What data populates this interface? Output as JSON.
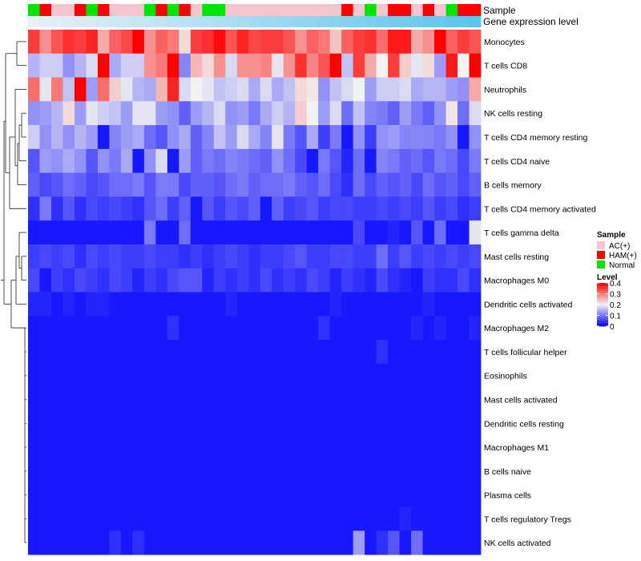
{
  "chart_data": {
    "type": "heatmap",
    "title": "",
    "annotations": [
      {
        "name": "Sample",
        "kind": "categorical"
      },
      {
        "name": "Gene expression level",
        "kind": "continuous"
      }
    ],
    "sample_groups": [
      "C",
      "H",
      "A",
      "A",
      "H",
      "C",
      "H",
      "A",
      "A",
      "A",
      "C",
      "H",
      "C",
      "H",
      "A",
      "C",
      "C",
      "A",
      "A",
      "A",
      "A",
      "A",
      "A",
      "A",
      "A",
      "A",
      "A",
      "H",
      "A",
      "C",
      "A",
      "H",
      "H",
      "A",
      "H",
      "A",
      "C",
      "H",
      "H"
    ],
    "sample_legend": {
      "title": "Sample",
      "items": [
        {
          "code": "A",
          "label": "AC(+)",
          "color": "#f5c6cf"
        },
        {
          "code": "H",
          "label": "HAM(+)",
          "color": "#ff0000"
        },
        {
          "code": "C",
          "label": "Normal",
          "color": "#00e600"
        }
      ]
    },
    "gene_expression_levels": [
      0.02,
      0.04,
      0.06,
      0.08,
      0.1,
      0.12,
      0.14,
      0.16,
      0.18,
      0.2,
      0.22,
      0.24,
      0.26,
      0.28,
      0.3,
      0.32,
      0.34,
      0.36,
      0.38,
      0.4,
      0.42,
      0.44,
      0.46,
      0.48,
      0.5,
      0.52,
      0.54,
      0.56,
      0.58,
      0.6,
      0.62,
      0.64,
      0.66,
      0.68,
      0.7,
      0.72,
      0.74,
      0.76,
      0.78
    ],
    "level_legend": {
      "title": "Level",
      "ticks": [
        "0.4",
        "0.3",
        "0.2",
        "0.1",
        "0"
      ],
      "tick_values": [
        0.4,
        0.3,
        0.2,
        0.1,
        0
      ],
      "range": [
        0,
        0.4
      ],
      "colors": {
        "low": "#0000ff",
        "mid": "#f2f2f2",
        "high": "#ff0000"
      }
    },
    "rows": [
      "Monocytes",
      "T cells CD8",
      "Neutrophils",
      "NK cells resting",
      "T cells CD4 memory resting",
      "T cells CD4 naive",
      "B cells memory",
      "T cells CD4 memory activated",
      "T cells gamma delta",
      "Mast cells resting",
      "Macrophages M0",
      "Dendritic cells activated",
      "Macrophages M2",
      "T cells follicular helper",
      "Eosinophils",
      "Mast cells activated",
      "Dendritic cells resting",
      "Macrophages M1",
      "B cells naive",
      "Plasma cells",
      "T cells regulatory  Tregs",
      "NK cells activated"
    ],
    "values": [
      [
        0.35,
        0.28,
        0.33,
        0.36,
        0.35,
        0.37,
        0.26,
        0.32,
        0.34,
        0.4,
        0.28,
        0.32,
        0.3,
        0.22,
        0.35,
        0.36,
        0.39,
        0.33,
        0.37,
        0.34,
        0.35,
        0.35,
        0.33,
        0.28,
        0.32,
        0.3,
        0.24,
        0.32,
        0.35,
        0.36,
        0.31,
        0.38,
        0.38,
        0.26,
        0.28,
        0.41,
        0.32,
        0.35,
        0.33
      ],
      [
        0.15,
        0.17,
        0.17,
        0.12,
        0.15,
        0.18,
        0.41,
        0.14,
        0.17,
        0.17,
        0.28,
        0.3,
        0.4,
        0.11,
        0.25,
        0.22,
        0.28,
        0.18,
        0.28,
        0.28,
        0.29,
        0.19,
        0.28,
        0.36,
        0.29,
        0.33,
        0.4,
        0.16,
        0.35,
        0.26,
        0.2,
        0.35,
        0.23,
        0.19,
        0.22,
        0.13,
        0.38,
        0.2,
        0.42
      ],
      [
        0.31,
        0.19,
        0.3,
        0.16,
        0.4,
        0.13,
        0.31,
        0.23,
        0.19,
        0.15,
        0.14,
        0.25,
        0.37,
        0.18,
        0.2,
        0.19,
        0.16,
        0.17,
        0.18,
        0.14,
        0.18,
        0.14,
        0.16,
        0.22,
        0.21,
        0.12,
        0.16,
        0.18,
        0.2,
        0.13,
        0.17,
        0.17,
        0.18,
        0.14,
        0.15,
        0.15,
        0.13,
        0.12,
        0.26
      ],
      [
        0.12,
        0.13,
        0.15,
        0.22,
        0.13,
        0.19,
        0.17,
        0.16,
        0.13,
        0.19,
        0.19,
        0.13,
        0.12,
        0.08,
        0.13,
        0.15,
        0.18,
        0.12,
        0.13,
        0.1,
        0.14,
        0.17,
        0.15,
        0.23,
        0.2,
        0.13,
        0.18,
        0.09,
        0.16,
        0.11,
        0.1,
        0.08,
        0.13,
        0.1,
        0.08,
        0.12,
        0.21,
        0.09,
        0.18
      ],
      [
        0.17,
        0.12,
        0.15,
        0.12,
        0.15,
        0.13,
        0.02,
        0.11,
        0.13,
        0.14,
        0.09,
        0.07,
        0.12,
        0.14,
        0.08,
        0.11,
        0.16,
        0.13,
        0.18,
        0.14,
        0.11,
        0.19,
        0.1,
        0.07,
        0.14,
        0.05,
        0.1,
        0.02,
        0.12,
        0.05,
        0.12,
        0.13,
        0.11,
        0.11,
        0.11,
        0.1,
        0.12,
        0.02,
        0.12
      ],
      [
        0.07,
        0.13,
        0.12,
        0.14,
        0.12,
        0.07,
        0.12,
        0.1,
        0.14,
        0.02,
        0.12,
        0.18,
        0.02,
        0.13,
        0.08,
        0.1,
        0.09,
        0.11,
        0.1,
        0.09,
        0.08,
        0.12,
        0.09,
        0.06,
        0.02,
        0.1,
        0.07,
        0.03,
        0.09,
        0.02,
        0.11,
        0.1,
        0.08,
        0.09,
        0.07,
        0.1,
        0.09,
        0.06,
        0.1
      ],
      [
        0.08,
        0.06,
        0.07,
        0.09,
        0.08,
        0.06,
        0.07,
        0.09,
        0.09,
        0.1,
        0.07,
        0.1,
        0.1,
        0.06,
        0.08,
        0.08,
        0.07,
        0.09,
        0.1,
        0.08,
        0.09,
        0.09,
        0.1,
        0.08,
        0.07,
        0.09,
        0.06,
        0.04,
        0.09,
        0.06,
        0.08,
        0.07,
        0.08,
        0.06,
        0.09,
        0.07,
        0.08,
        0.06,
        0.08
      ],
      [
        0.04,
        0.1,
        0.04,
        0.07,
        0.04,
        0.06,
        0.05,
        0.06,
        0.05,
        0.04,
        0.07,
        0.09,
        0.05,
        0.08,
        0.02,
        0.07,
        0.05,
        0.07,
        0.06,
        0.08,
        0.02,
        0.08,
        0.05,
        0.06,
        0.07,
        0.05,
        0.06,
        0.06,
        0.05,
        0.05,
        0.06,
        0.05,
        0.06,
        0.05,
        0.07,
        0.05,
        0.06,
        0.04,
        0.05
      ],
      [
        0.02,
        0.02,
        0.02,
        0.02,
        0.02,
        0.02,
        0.02,
        0.02,
        0.02,
        0.02,
        0.1,
        0.02,
        0.02,
        0.09,
        0.02,
        0.02,
        0.02,
        0.02,
        0.02,
        0.02,
        0.02,
        0.02,
        0.02,
        0.02,
        0.02,
        0.02,
        0.02,
        0.02,
        0.06,
        0.02,
        0.02,
        0.03,
        0.02,
        0.07,
        0.02,
        0.09,
        0.02,
        0.02,
        0.19
      ],
      [
        0.05,
        0.06,
        0.05,
        0.06,
        0.04,
        0.06,
        0.05,
        0.06,
        0.05,
        0.05,
        0.06,
        0.05,
        0.05,
        0.04,
        0.05,
        0.04,
        0.05,
        0.06,
        0.05,
        0.04,
        0.05,
        0.05,
        0.06,
        0.07,
        0.05,
        0.05,
        0.06,
        0.06,
        0.05,
        0.05,
        0.09,
        0.05,
        0.07,
        0.05,
        0.06,
        0.05,
        0.06,
        0.05,
        0.06
      ],
      [
        0.06,
        0.02,
        0.05,
        0.04,
        0.06,
        0.05,
        0.04,
        0.06,
        0.05,
        0.03,
        0.05,
        0.04,
        0.06,
        0.07,
        0.07,
        0.03,
        0.05,
        0.04,
        0.05,
        0.04,
        0.06,
        0.04,
        0.05,
        0.04,
        0.06,
        0.05,
        0.03,
        0.05,
        0.04,
        0.03,
        0.06,
        0.04,
        0.03,
        0.02,
        0.05,
        0.04,
        0.04,
        0.06,
        0.04
      ],
      [
        0.03,
        0.03,
        0.02,
        0.03,
        0.02,
        0.03,
        0.03,
        0.02,
        0.02,
        0.02,
        0.02,
        0.02,
        0.02,
        0.02,
        0.02,
        0.02,
        0.02,
        0.03,
        0.02,
        0.02,
        0.02,
        0.02,
        0.02,
        0.02,
        0.02,
        0.02,
        0.03,
        0.02,
        0.02,
        0.02,
        0.02,
        0.02,
        0.02,
        0.02,
        0.03,
        0.02,
        0.02,
        0.02,
        0.02
      ],
      [
        0.02,
        0.02,
        0.02,
        0.02,
        0.02,
        0.02,
        0.02,
        0.02,
        0.02,
        0.02,
        0.02,
        0.02,
        0.04,
        0.02,
        0.02,
        0.02,
        0.02,
        0.02,
        0.02,
        0.02,
        0.02,
        0.02,
        0.02,
        0.02,
        0.02,
        0.04,
        0.02,
        0.02,
        0.02,
        0.02,
        0.02,
        0.02,
        0.02,
        0.03,
        0.02,
        0.03,
        0.02,
        0.02,
        0.03
      ],
      [
        0.02,
        0.02,
        0.02,
        0.02,
        0.02,
        0.02,
        0.02,
        0.02,
        0.02,
        0.02,
        0.02,
        0.02,
        0.02,
        0.02,
        0.02,
        0.02,
        0.02,
        0.02,
        0.02,
        0.02,
        0.02,
        0.02,
        0.02,
        0.02,
        0.02,
        0.02,
        0.02,
        0.02,
        0.02,
        0.02,
        0.04,
        0.02,
        0.02,
        0.02,
        0.02,
        0.02,
        0.02,
        0.02,
        0.02
      ],
      [
        0.02,
        0.02,
        0.02,
        0.02,
        0.02,
        0.02,
        0.02,
        0.02,
        0.02,
        0.02,
        0.02,
        0.02,
        0.02,
        0.02,
        0.02,
        0.02,
        0.02,
        0.02,
        0.02,
        0.02,
        0.02,
        0.02,
        0.02,
        0.02,
        0.02,
        0.02,
        0.02,
        0.02,
        0.02,
        0.02,
        0.02,
        0.02,
        0.02,
        0.02,
        0.02,
        0.02,
        0.02,
        0.02,
        0.02
      ],
      [
        0.02,
        0.02,
        0.02,
        0.02,
        0.02,
        0.02,
        0.02,
        0.02,
        0.02,
        0.02,
        0.02,
        0.02,
        0.02,
        0.02,
        0.02,
        0.02,
        0.02,
        0.02,
        0.02,
        0.02,
        0.02,
        0.02,
        0.02,
        0.02,
        0.02,
        0.02,
        0.02,
        0.02,
        0.02,
        0.02,
        0.02,
        0.02,
        0.02,
        0.02,
        0.02,
        0.02,
        0.02,
        0.02,
        0.02
      ],
      [
        0.02,
        0.02,
        0.02,
        0.02,
        0.02,
        0.02,
        0.02,
        0.02,
        0.02,
        0.02,
        0.02,
        0.02,
        0.02,
        0.02,
        0.02,
        0.02,
        0.02,
        0.02,
        0.02,
        0.02,
        0.02,
        0.02,
        0.02,
        0.02,
        0.02,
        0.02,
        0.02,
        0.02,
        0.02,
        0.02,
        0.02,
        0.02,
        0.02,
        0.02,
        0.02,
        0.02,
        0.02,
        0.02,
        0.02
      ],
      [
        0.02,
        0.02,
        0.02,
        0.02,
        0.02,
        0.02,
        0.02,
        0.02,
        0.02,
        0.02,
        0.02,
        0.02,
        0.02,
        0.02,
        0.02,
        0.02,
        0.02,
        0.02,
        0.02,
        0.02,
        0.02,
        0.02,
        0.02,
        0.02,
        0.02,
        0.02,
        0.02,
        0.02,
        0.02,
        0.02,
        0.02,
        0.02,
        0.02,
        0.02,
        0.02,
        0.02,
        0.02,
        0.02,
        0.02
      ],
      [
        0.02,
        0.02,
        0.02,
        0.02,
        0.02,
        0.02,
        0.02,
        0.02,
        0.02,
        0.02,
        0.02,
        0.02,
        0.02,
        0.02,
        0.02,
        0.02,
        0.02,
        0.02,
        0.02,
        0.02,
        0.02,
        0.02,
        0.02,
        0.02,
        0.02,
        0.02,
        0.02,
        0.02,
        0.02,
        0.02,
        0.02,
        0.02,
        0.02,
        0.02,
        0.02,
        0.02,
        0.02,
        0.02,
        0.02
      ],
      [
        0.02,
        0.02,
        0.02,
        0.02,
        0.02,
        0.02,
        0.02,
        0.02,
        0.02,
        0.02,
        0.02,
        0.02,
        0.02,
        0.02,
        0.02,
        0.02,
        0.02,
        0.02,
        0.02,
        0.02,
        0.02,
        0.02,
        0.02,
        0.02,
        0.02,
        0.02,
        0.02,
        0.02,
        0.02,
        0.02,
        0.02,
        0.02,
        0.02,
        0.02,
        0.02,
        0.02,
        0.02,
        0.02,
        0.02
      ],
      [
        0.02,
        0.02,
        0.02,
        0.02,
        0.02,
        0.02,
        0.02,
        0.02,
        0.02,
        0.02,
        0.02,
        0.02,
        0.02,
        0.02,
        0.02,
        0.02,
        0.02,
        0.02,
        0.02,
        0.02,
        0.02,
        0.02,
        0.02,
        0.02,
        0.02,
        0.02,
        0.02,
        0.02,
        0.02,
        0.02,
        0.02,
        0.02,
        0.03,
        0.02,
        0.02,
        0.02,
        0.02,
        0.02,
        0.02
      ],
      [
        0.02,
        0.02,
        0.02,
        0.02,
        0.02,
        0.02,
        0.02,
        0.04,
        0.02,
        0.04,
        0.02,
        0.02,
        0.02,
        0.02,
        0.02,
        0.02,
        0.02,
        0.02,
        0.02,
        0.02,
        0.02,
        0.02,
        0.02,
        0.02,
        0.02,
        0.02,
        0.02,
        0.02,
        0.13,
        0.02,
        0.04,
        0.07,
        0.02,
        0.09,
        0.02,
        0.02,
        0.02,
        0.02,
        0.02
      ]
    ]
  }
}
